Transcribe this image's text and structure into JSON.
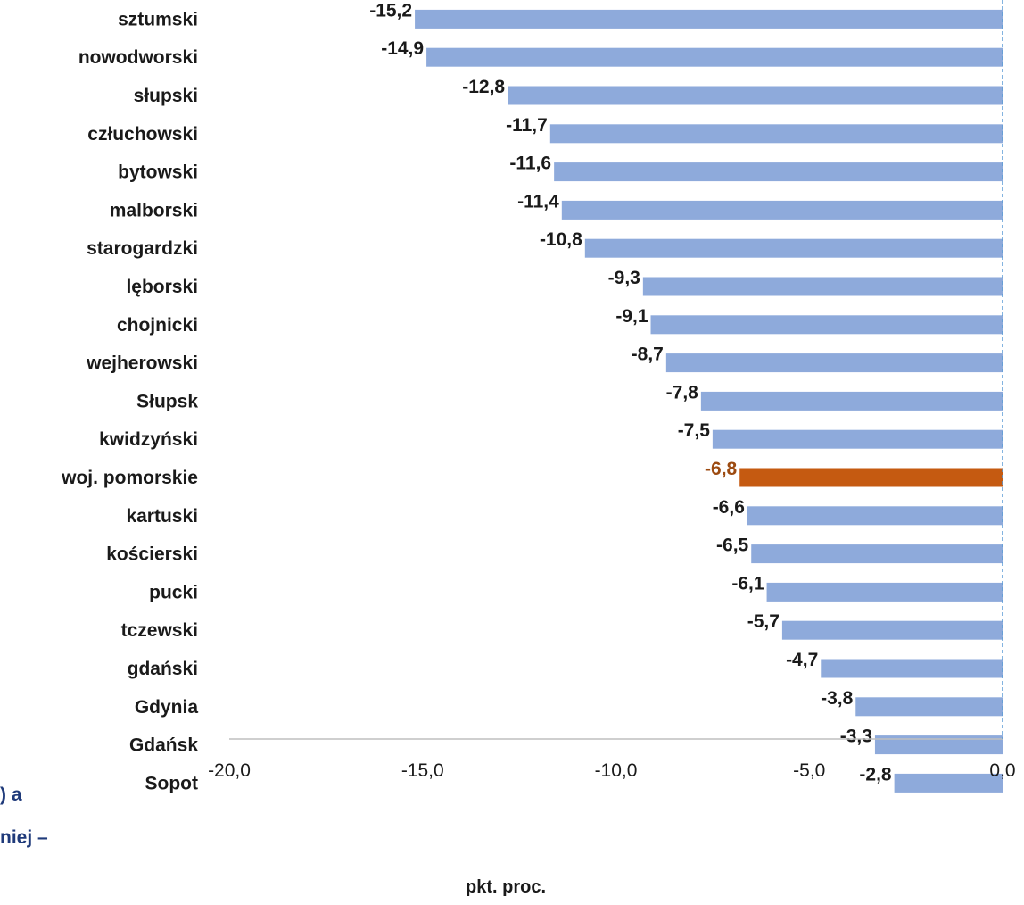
{
  "chart_data": {
    "type": "bar",
    "orientation": "horizontal",
    "categories": [
      "sztumski",
      "nowodworski",
      "słupski",
      "człuchowski",
      "bytowski",
      "malborski",
      "starogardzki",
      "lęborski",
      "chojnicki",
      "wejherowski",
      "Słupsk",
      "kwidzyński",
      "woj. pomorskie",
      "kartuski",
      "kościerski",
      "pucki",
      "tczewski",
      "gdański",
      "Gdynia",
      "Gdańsk",
      "Sopot"
    ],
    "values": [
      -15.2,
      -14.9,
      -12.8,
      -11.7,
      -11.6,
      -11.4,
      -10.8,
      -9.3,
      -9.1,
      -8.7,
      -7.8,
      -7.5,
      -6.8,
      -6.6,
      -6.5,
      -6.1,
      -5.7,
      -4.7,
      -3.8,
      -3.3,
      -2.8
    ],
    "value_labels": [
      "-15,2",
      "-14,9",
      "-12,8",
      "-11,7",
      "-11,6",
      "-11,4",
      "-10,8",
      "-9,3",
      "-9,1",
      "-8,7",
      "-7,8",
      "-7,5",
      "-6,8",
      "-6,6",
      "-6,5",
      "-6,1",
      "-5,7",
      "-4,7",
      "-3,8",
      "-3,3",
      "-2,8"
    ],
    "highlight_index": 12,
    "xlim": [
      -20,
      0
    ],
    "xticks": [
      -20,
      -15,
      -10,
      -5,
      0
    ],
    "xtick_labels": [
      "-20,0",
      "-15,0",
      "-10,0",
      "-5,0",
      "0,0"
    ],
    "xlabel": "pkt. proc.",
    "title": "",
    "grid": false,
    "colors": {
      "bar": "#8eaadb",
      "highlight": "#c55a11",
      "highlight_label": "#9c4a10",
      "axis": "#bfbfbf"
    }
  },
  "cropped_text": [
    ") a",
    "niej –"
  ]
}
